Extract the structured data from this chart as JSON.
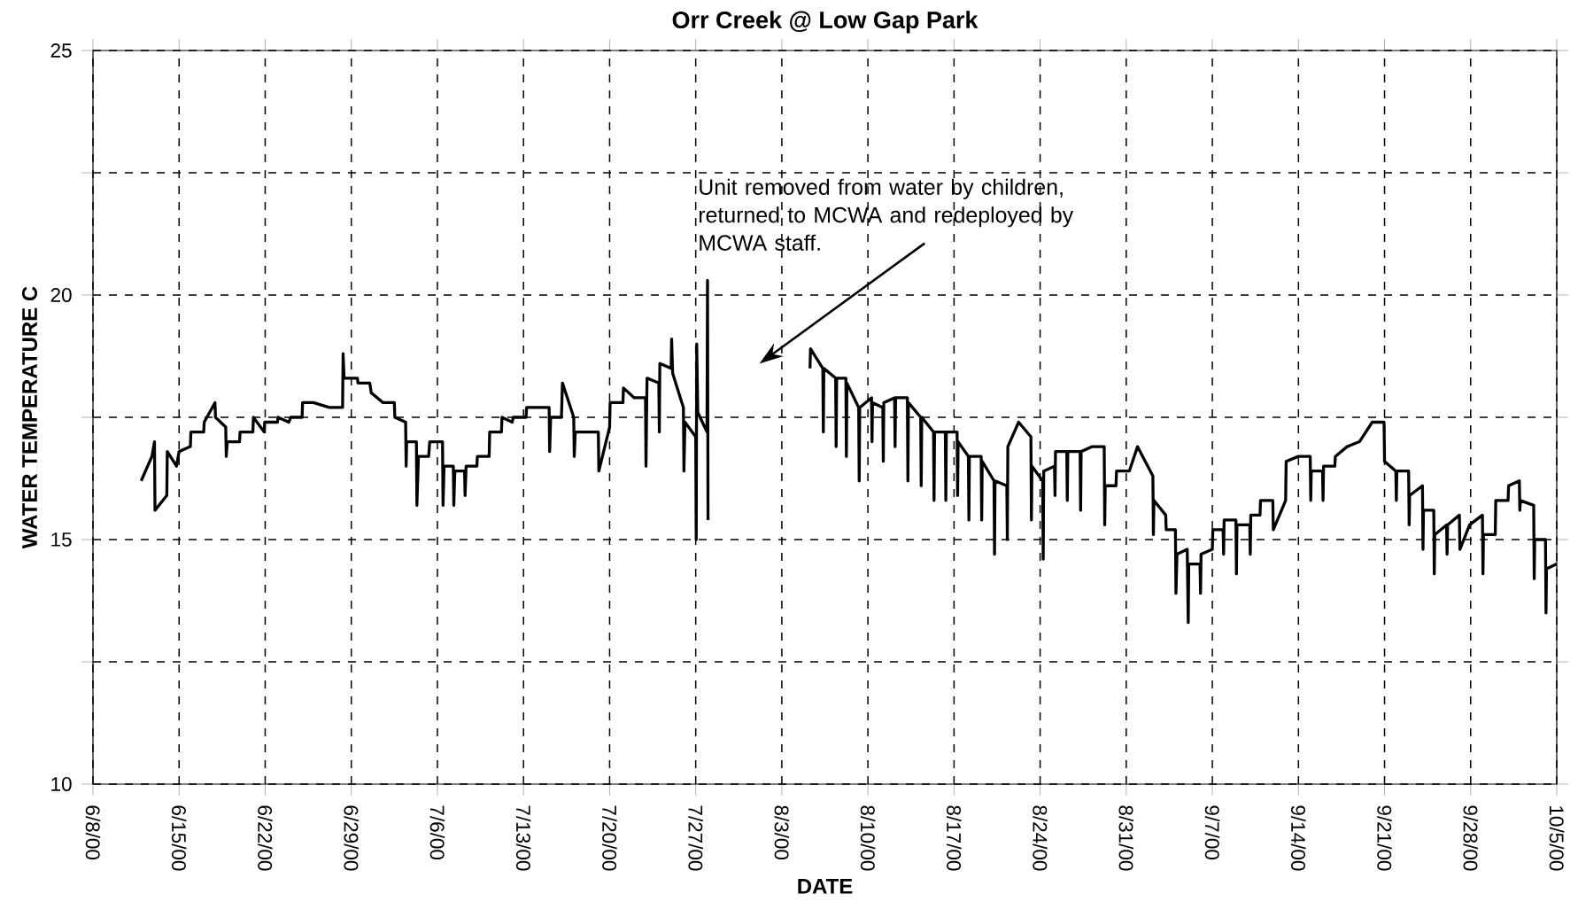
{
  "chart_data": {
    "type": "line",
    "title": "Orr Creek @ Low Gap Park",
    "xlabel": "DATE",
    "ylabel": "WATER TEMPERATURE C",
    "color": "#000000",
    "line_style": "solid",
    "marker": "none",
    "grid": true,
    "xlim": [
      "2000-06-08",
      "2000-10-05"
    ],
    "xticks": [
      {
        "value": "2000-06-08",
        "label": "6/8/00"
      },
      {
        "value": "2000-06-15",
        "label": "6/15/00"
      },
      {
        "value": "2000-06-22",
        "label": "6/22/00"
      },
      {
        "value": "2000-06-29",
        "label": "6/29/00"
      },
      {
        "value": "2000-07-06",
        "label": "7/6/00"
      },
      {
        "value": "2000-07-13",
        "label": "7/13/00"
      },
      {
        "value": "2000-07-20",
        "label": "7/20/00"
      },
      {
        "value": "2000-07-27",
        "label": "7/27/00"
      },
      {
        "value": "2000-08-03",
        "label": "8/3/00"
      },
      {
        "value": "2000-08-10",
        "label": "8/10/00"
      },
      {
        "value": "2000-08-17",
        "label": "8/17/00"
      },
      {
        "value": "2000-08-24",
        "label": "8/24/00"
      },
      {
        "value": "2000-08-31",
        "label": "8/31/00"
      },
      {
        "value": "2000-09-07",
        "label": "9/7/00"
      },
      {
        "value": "2000-09-14",
        "label": "9/14/00"
      },
      {
        "value": "2000-09-21",
        "label": "9/21/00"
      },
      {
        "value": "2000-09-28",
        "label": "9/28/00"
      },
      {
        "value": "2000-10-05",
        "label": "10/5/00"
      }
    ],
    "ylim": [
      10,
      25
    ],
    "yticks": [
      10,
      {
        "value": 12.5,
        "label": null
      },
      15,
      {
        "value": 17.5,
        "label": null
      },
      20,
      {
        "value": 22.5,
        "label": null
      },
      25
    ],
    "annotations": [
      "Unit removed from water by children, returned to MCWA and redeployed by MCWA staff."
    ],
    "x": [
      "2000-06-11T22:00",
      "2000-06-12T19:00",
      "2000-06-13T00:00",
      "2000-06-13T01:00",
      "2000-06-14T00:00",
      "2000-06-14T01:00",
      "2000-06-14T19:00",
      "2000-06-15T00:00",
      "2000-06-15T22:00",
      "2000-06-15T23:00",
      "2000-06-17T00:00",
      "2000-06-17T01:00",
      "2000-06-17T22:00",
      "2000-06-17T23:00",
      "2000-06-18T19:00",
      "2000-06-18T20:00",
      "2000-06-18T22:00",
      "2000-06-19T22:00",
      "2000-06-19T23:00",
      "2000-06-21T00:00",
      "2000-06-21T01:00",
      "2000-06-21T22:00",
      "2000-06-21T23:00",
      "2000-06-23T00:00",
      "2000-06-23T01:00",
      "2000-06-23T22:00",
      "2000-06-24T02:00",
      "2000-06-25T00:00",
      "2000-06-25T01:00",
      "2000-06-25T22:00",
      "2000-06-27T05:00",
      "2000-06-28T07:00",
      "2000-06-28T08:00",
      "2000-06-28T10:00",
      "2000-06-29T12:00",
      "2000-06-29T13:00",
      "2000-06-30T12:00",
      "2000-06-30T15:00",
      "2000-07-01T14:00",
      "2000-07-02T12:00",
      "2000-07-02T13:00",
      "2000-07-03T10:00",
      "2000-07-03T11:00",
      "2000-07-03T12:00",
      "2000-07-04T07:00",
      "2000-07-04T08:00",
      "2000-07-04T11:00",
      "2000-07-05T07:00",
      "2000-07-05T09:00",
      "2000-07-06T10:00",
      "2000-07-06T11:00",
      "2000-07-06T13:00",
      "2000-07-07T07:00",
      "2000-07-07T08:00",
      "2000-07-07T10:00",
      "2000-07-08T05:00",
      "2000-07-08T06:00",
      "2000-07-08T08:00",
      "2000-07-09T05:00",
      "2000-07-09T06:00",
      "2000-07-10T05:00",
      "2000-07-10T06:00",
      "2000-07-11T05:00",
      "2000-07-11T06:00",
      "2000-07-12T02:00",
      "2000-07-12T04:00",
      "2000-07-13T05:00",
      "2000-07-13T06:00",
      "2000-07-15T02:00",
      "2000-07-15T03:00",
      "2000-07-15T05:00",
      "2000-07-16T02:00",
      "2000-07-16T04:00",
      "2000-07-17T02:00",
      "2000-07-17T03:00",
      "2000-07-17T05:00",
      "2000-07-19T02:00",
      "2000-07-19T03:00",
      "2000-07-20T00:00",
      "2000-07-20T01:00",
      "2000-07-21T02:00",
      "2000-07-21T03:00",
      "2000-07-22T00:00",
      "2000-07-22T22:00",
      "2000-07-22T23:00",
      "2000-07-23T01:00",
      "2000-07-24T00:00",
      "2000-07-24T01:00",
      "2000-07-24T02:00",
      "2000-07-25T00:00",
      "2000-07-25T01:00",
      "2000-07-25T03:00",
      "2000-07-26T00:00",
      "2000-07-26T01:00",
      "2000-07-26T03:00",
      "2000-07-27T00:00",
      "2000-07-27T01:00",
      "2000-07-27T02:00",
      "2000-07-27T04:00",
      "2000-07-27T22:00",
      "2000-07-27T23:00",
      "2000-07-28T00:00",
      "2000-07-31T12:00",
      "2000-08-05T07:00",
      "2000-08-05T08:00",
      "2000-08-06T08:00",
      "2000-08-06T09:00",
      "2000-08-06T10:00",
      "2000-08-07T09:00",
      "2000-08-07T10:00",
      "2000-08-07T11:00",
      "2000-08-08T05:00",
      "2000-08-08T06:00",
      "2000-08-08T07:00",
      "2000-08-09T06:00",
      "2000-08-09T07:00",
      "2000-08-09T08:00",
      "2000-08-10T07:00",
      "2000-08-10T08:00",
      "2000-08-10T09:00",
      "2000-08-11T05:00",
      "2000-08-11T06:00",
      "2000-08-11T07:00",
      "2000-08-12T04:00",
      "2000-08-12T05:00",
      "2000-08-12T06:00",
      "2000-08-13T05:00",
      "2000-08-13T06:00",
      "2000-08-13T07:00",
      "2000-08-14T07:00",
      "2000-08-14T08:00",
      "2000-08-14T09:00",
      "2000-08-15T08:00",
      "2000-08-15T09:00",
      "2000-08-15T10:00",
      "2000-08-16T07:00",
      "2000-08-16T08:00",
      "2000-08-16T09:00",
      "2000-08-17T06:00",
      "2000-08-17T07:00",
      "2000-08-17T08:00",
      "2000-08-18T04:00",
      "2000-08-18T05:00",
      "2000-08-18T06:00",
      "2000-08-19T05:00",
      "2000-08-19T06:00",
      "2000-08-19T07:00",
      "2000-08-20T06:00",
      "2000-08-20T07:00",
      "2000-08-20T08:00",
      "2000-08-21T07:00",
      "2000-08-21T08:00",
      "2000-08-21T09:00",
      "2000-08-22T06:00",
      "2000-08-23T06:00",
      "2000-08-23T07:00",
      "2000-08-23T08:00",
      "2000-08-24T05:00",
      "2000-08-24T06:00",
      "2000-08-24T07:00",
      "2000-08-25T04:00",
      "2000-08-25T05:00",
      "2000-08-25T06:00",
      "2000-08-26T04:00",
      "2000-08-26T05:00",
      "2000-08-26T06:00",
      "2000-08-27T06:00",
      "2000-08-27T07:00",
      "2000-08-27T08:00",
      "2000-08-28T06:00",
      "2000-08-29T05:00",
      "2000-08-29T06:00",
      "2000-08-29T07:00",
      "2000-08-30T04:00",
      "2000-08-30T05:00",
      "2000-08-31T06:00",
      "2000-08-31T22:00",
      "2000-09-02T04:00",
      "2000-09-02T05:00",
      "2000-09-02T06:00",
      "2000-09-03T05:00",
      "2000-09-03T06:00",
      "2000-09-04T00:00",
      "2000-09-04T01:00",
      "2000-09-04T03:00",
      "2000-09-04T23:00",
      "2000-09-05T01:00",
      "2000-09-05T02:00",
      "2000-09-06T00:00",
      "2000-09-06T01:00",
      "2000-09-06T02:00",
      "2000-09-07T00:00",
      "2000-09-07T01:00",
      "2000-09-07T21:00",
      "2000-09-07T22:00",
      "2000-09-07T23:00",
      "2000-09-08T22:00",
      "2000-09-08T23:00",
      "2000-09-09T00:00",
      "2000-09-10T01:00",
      "2000-09-10T02:00",
      "2000-09-10T03:00",
      "2000-09-10T21:00",
      "2000-09-10T22:00",
      "2000-09-11T22:00",
      "2000-09-11T23:00",
      "2000-09-12T23:00",
      "2000-09-13T00:00",
      "2000-09-14T00:00",
      "2000-09-14T23:00",
      "2000-09-15T00:00",
      "2000-09-15T01:00",
      "2000-09-15T23:00",
      "2000-09-16T00:00",
      "2000-09-16T01:00",
      "2000-09-16T23:00",
      "2000-09-17T00:00",
      "2000-09-17T23:00",
      "2000-09-18T23:00",
      "2000-09-20T00:00",
      "2000-09-20T23:00",
      "2000-09-21T00:00",
      "2000-09-21T22:00",
      "2000-09-21T23:00",
      "2000-09-22T00:00",
      "2000-09-22T23:00",
      "2000-09-23T00:00",
      "2000-09-23T01:00",
      "2000-09-24T02:00",
      "2000-09-24T03:00",
      "2000-09-24T04:00",
      "2000-09-25T00:00",
      "2000-09-25T01:00",
      "2000-09-25T02:00",
      "2000-09-26T01:00",
      "2000-09-26T02:00",
      "2000-09-26T03:00",
      "2000-09-27T02:00",
      "2000-09-27T03:00",
      "2000-09-27T22:00",
      "2000-09-28T23:00",
      "2000-09-29T00:00",
      "2000-09-29T01:00",
      "2000-09-30T00:00",
      "2000-09-30T01:00",
      "2000-10-01T01:00",
      "2000-10-01T02:00",
      "2000-10-01T23:00",
      "2000-10-02T00:00",
      "2000-10-02T01:00",
      "2000-10-03T03:00",
      "2000-10-03T04:00",
      "2000-10-03T05:00",
      "2000-10-04T02:00",
      "2000-10-04T03:00",
      "2000-10-04T04:00",
      "2000-10-05T00:00"
    ],
    "values": [
      16.2,
      16.7,
      17.0,
      15.6,
      15.9,
      16.8,
      16.5,
      16.8,
      16.9,
      17.2,
      17.2,
      17.4,
      17.8,
      17.5,
      17.3,
      16.7,
      17.0,
      17.0,
      17.2,
      17.2,
      17.5,
      17.2,
      17.4,
      17.4,
      17.5,
      17.4,
      17.5,
      17.5,
      17.8,
      17.8,
      17.7,
      17.7,
      18.8,
      18.3,
      18.3,
      18.2,
      18.2,
      18.0,
      17.8,
      17.8,
      17.5,
      17.4,
      16.5,
      17.0,
      17.0,
      15.7,
      16.7,
      16.7,
      17.0,
      17.0,
      15.7,
      16.5,
      16.5,
      15.7,
      16.4,
      16.4,
      15.9,
      16.5,
      16.5,
      16.7,
      16.7,
      17.2,
      17.2,
      17.5,
      17.4,
      17.5,
      17.5,
      17.7,
      17.7,
      16.8,
      17.5,
      17.5,
      18.2,
      17.5,
      16.7,
      17.2,
      17.2,
      16.4,
      17.3,
      17.8,
      17.8,
      18.1,
      17.9,
      17.9,
      16.5,
      18.3,
      18.2,
      17.2,
      18.6,
      18.5,
      19.1,
      18.4,
      17.7,
      16.4,
      17.4,
      17.1,
      15.0,
      19.0,
      17.6,
      17.2,
      20.3,
      15.4,
      null,
      18.5,
      18.9,
      18.5,
      17.2,
      18.5,
      18.3,
      16.9,
      18.3,
      18.3,
      16.7,
      18.2,
      17.7,
      16.2,
      17.7,
      17.9,
      17.0,
      17.8,
      17.7,
      16.6,
      17.8,
      17.9,
      16.9,
      17.9,
      17.9,
      16.2,
      17.8,
      17.5,
      16.1,
      17.5,
      17.2,
      15.8,
      17.2,
      17.2,
      15.8,
      17.2,
      17.2,
      15.9,
      17.0,
      16.7,
      15.4,
      16.7,
      16.7,
      15.4,
      16.6,
      16.2,
      14.7,
      16.2,
      16.1,
      15.0,
      16.9,
      17.4,
      17.1,
      15.4,
      16.5,
      16.2,
      14.6,
      16.4,
      16.5,
      15.9,
      16.8,
      16.8,
      15.8,
      16.8,
      16.8,
      15.6,
      16.8,
      16.9,
      16.9,
      15.3,
      16.1,
      16.1,
      16.4,
      16.4,
      16.9,
      16.3,
      15.1,
      15.8,
      15.5,
      15.2,
      15.2,
      13.9,
      14.7,
      14.8,
      13.3,
      14.5,
      14.5,
      13.9,
      14.7,
      14.8,
      15.2,
      15.2,
      14.7,
      15.4,
      15.4,
      14.3,
      15.3,
      15.3,
      14.7,
      15.5,
      15.5,
      15.8,
      15.8,
      15.2,
      15.8,
      16.6,
      16.7,
      16.7,
      15.8,
      16.4,
      16.4,
      15.8,
      16.5,
      16.5,
      16.7,
      16.9,
      17.0,
      17.4,
      17.4,
      16.6,
      16.4,
      15.8,
      16.4,
      16.4,
      15.3,
      15.9,
      16.1,
      14.8,
      15.6,
      15.6,
      14.3,
      15.1,
      15.3,
      14.7,
      15.3,
      15.5,
      14.8,
      15.3,
      15.5,
      14.3,
      15.1,
      15.1,
      15.8,
      15.8,
      16.1,
      16.2,
      15.6,
      15.8,
      15.7,
      14.2,
      15.0,
      15.0,
      13.5,
      14.4,
      14.5
    ]
  }
}
